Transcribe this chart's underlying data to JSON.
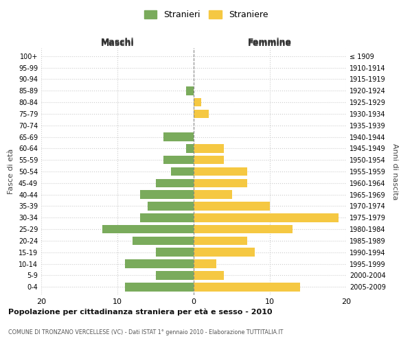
{
  "age_groups": [
    "0-4",
    "5-9",
    "10-14",
    "15-19",
    "20-24",
    "25-29",
    "30-34",
    "35-39",
    "40-44",
    "45-49",
    "50-54",
    "55-59",
    "60-64",
    "65-69",
    "70-74",
    "75-79",
    "80-84",
    "85-89",
    "90-94",
    "95-99",
    "100+"
  ],
  "birth_years": [
    "2005-2009",
    "2000-2004",
    "1995-1999",
    "1990-1994",
    "1985-1989",
    "1980-1984",
    "1975-1979",
    "1970-1974",
    "1965-1969",
    "1960-1964",
    "1955-1959",
    "1950-1954",
    "1945-1949",
    "1940-1944",
    "1935-1939",
    "1930-1934",
    "1925-1929",
    "1920-1924",
    "1915-1919",
    "1910-1914",
    "≤ 1909"
  ],
  "maschi": [
    9,
    5,
    9,
    5,
    8,
    12,
    7,
    6,
    7,
    5,
    3,
    4,
    1,
    4,
    0,
    0,
    0,
    1,
    0,
    0,
    0
  ],
  "femmine": [
    14,
    4,
    3,
    8,
    7,
    13,
    19,
    10,
    5,
    7,
    7,
    4,
    4,
    0,
    0,
    2,
    1,
    0,
    0,
    0,
    0
  ],
  "color_maschi": "#7aab5c",
  "color_femmine": "#f5c842",
  "bg_color": "#ffffff",
  "grid_color": "#cccccc",
  "title": "Popolazione per cittadinanza straniera per età e sesso - 2010",
  "subtitle": "COMUNE DI TRONZANO VERCELLESE (VC) - Dati ISTAT 1° gennaio 2010 - Elaborazione TUTTITALIA.IT",
  "xlabel_left": "Maschi",
  "xlabel_right": "Femmine",
  "ylabel_left": "Fasce di età",
  "ylabel_right": "Anni di nascita",
  "legend_maschi": "Stranieri",
  "legend_femmine": "Straniere",
  "xlim": 20,
  "bar_height": 0.75
}
